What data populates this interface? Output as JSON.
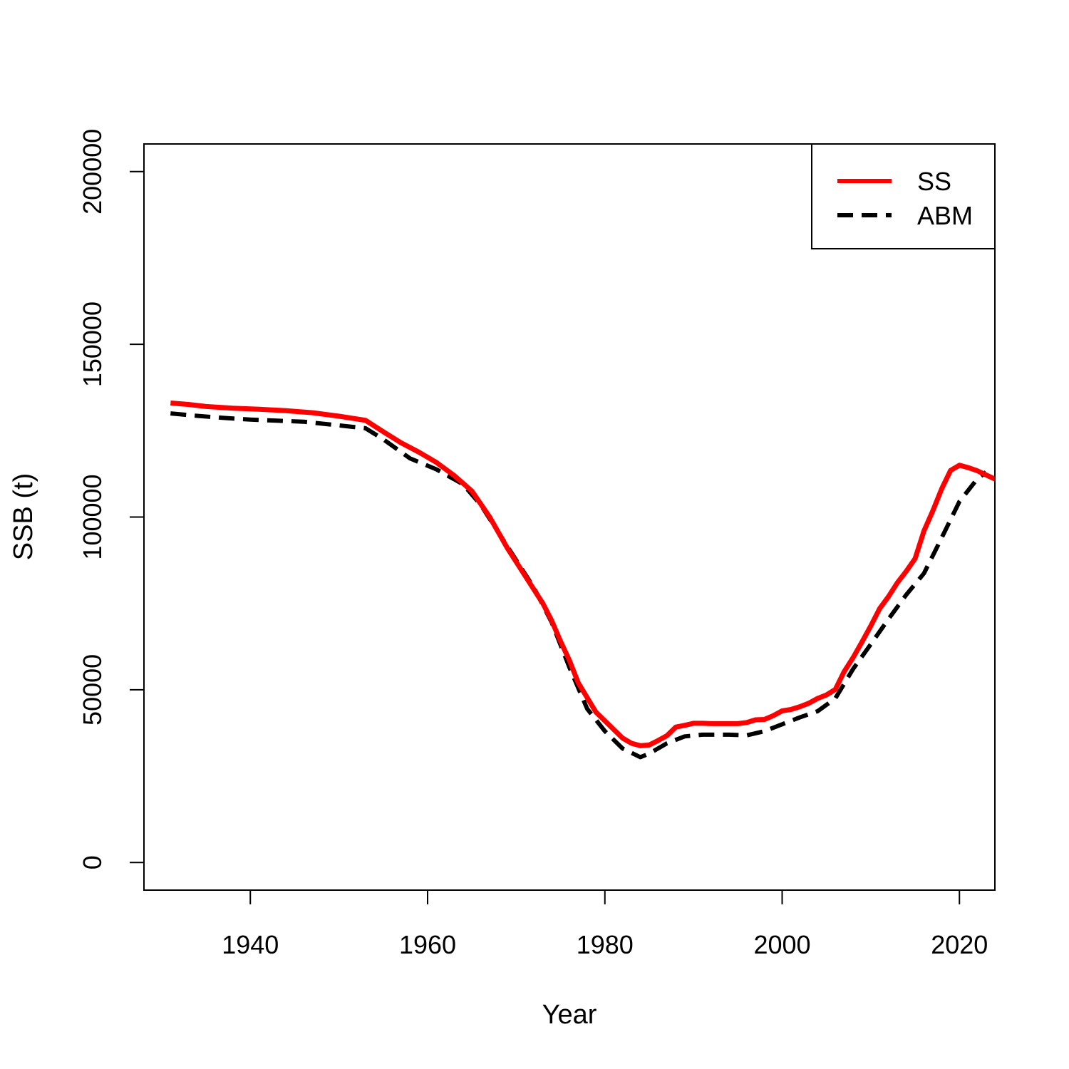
{
  "chart_data": {
    "type": "line",
    "title": "",
    "xlabel": "Year",
    "ylabel": "SSB (t)",
    "xlim": [
      1928,
      2024
    ],
    "ylim": [
      -8000,
      208000
    ],
    "x_ticks": [
      1940,
      1960,
      1980,
      2000,
      2020
    ],
    "y_ticks": [
      0,
      50000,
      100000,
      150000,
      200000
    ],
    "grid": false,
    "legend": {
      "position": "top-right",
      "entries": [
        "SS",
        "ABM"
      ]
    },
    "series": [
      {
        "name": "SS",
        "color": "#ff0000",
        "dash": "solid",
        "x": [
          1931,
          1933,
          1935,
          1938,
          1941,
          1944,
          1947,
          1950,
          1953,
          1955,
          1957,
          1959,
          1961,
          1963,
          1965,
          1967,
          1969,
          1971,
          1973,
          1974,
          1975,
          1976,
          1977,
          1979,
          1981,
          1982,
          1983,
          1984,
          1985,
          1986,
          1987,
          1988,
          1989,
          1990,
          1991,
          1992,
          1993,
          1994,
          1995,
          1996,
          1997,
          1998,
          1999,
          2000,
          2001,
          2002,
          2003,
          2004,
          2005,
          2006,
          2007,
          2008,
          2009,
          2010,
          2011,
          2012,
          2013,
          2014,
          2015,
          2016,
          2017,
          2018,
          2019,
          2020,
          2021,
          2022,
          2023,
          2024
        ],
        "values": [
          133000,
          132600,
          132000,
          131500,
          131200,
          130800,
          130200,
          129200,
          128000,
          124700,
          121500,
          118800,
          115800,
          112000,
          107500,
          100000,
          91000,
          83000,
          75000,
          70000,
          64000,
          58500,
          52000,
          43500,
          38500,
          36000,
          34500,
          33800,
          34000,
          35300,
          36700,
          39200,
          39700,
          40300,
          40300,
          40200,
          40200,
          40200,
          40200,
          40500,
          41300,
          41400,
          42500,
          43900,
          44300,
          45100,
          46100,
          47500,
          48500,
          50100,
          55300,
          59300,
          63800,
          68500,
          73500,
          77000,
          81000,
          84300,
          88000,
          96000,
          101800,
          108200,
          113500,
          115000,
          114300,
          113400,
          112200,
          111000
        ]
      },
      {
        "name": "ABM",
        "color": "#000000",
        "dash": "dashed",
        "x": [
          1931,
          1934,
          1937,
          1940,
          1943,
          1946,
          1949,
          1953,
          1955,
          1958,
          1961,
          1964,
          1966,
          1968,
          1970,
          1972,
          1974,
          1976,
          1978,
          1980,
          1982,
          1984,
          1985,
          1987,
          1989,
          1991,
          1994,
          1996,
          1998,
          2000,
          2002,
          2004,
          2006,
          2008,
          2010,
          2012,
          2014,
          2016,
          2018,
          2020,
          2022,
          2023
        ],
        "values": [
          130000,
          129300,
          128700,
          128200,
          127900,
          127600,
          126800,
          125700,
          122500,
          117000,
          113800,
          109500,
          103500,
          95500,
          87500,
          79500,
          69500,
          56500,
          44500,
          38000,
          33000,
          30500,
          31500,
          34500,
          36500,
          37000,
          37000,
          36800,
          38000,
          40000,
          42000,
          43800,
          47500,
          56000,
          63200,
          70500,
          77500,
          83700,
          94000,
          104500,
          111000,
          113000
        ]
      }
    ]
  }
}
